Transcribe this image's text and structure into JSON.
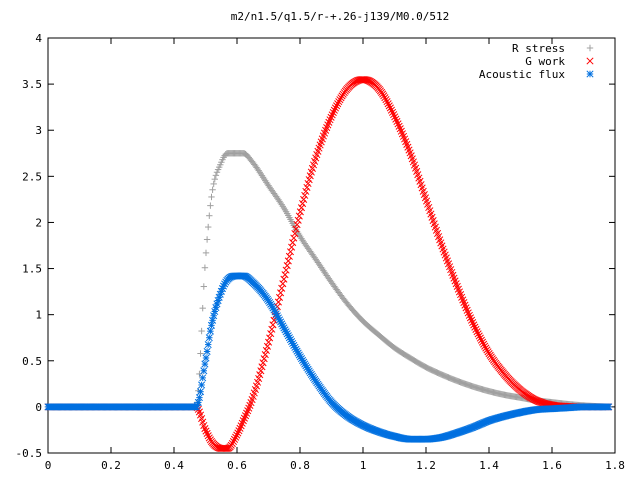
{
  "chart_data": {
    "type": "scatter",
    "title": "m2/n1.5/q1.5/r-+.26-j139/M0.0/512",
    "xlabel": "",
    "ylabel": "",
    "xlim": [
      0,
      1.8
    ],
    "ylim": [
      -0.5,
      4
    ],
    "x_ticks": [
      "0",
      "0.2",
      "0.4",
      "0.6",
      "0.8",
      "1",
      "1.2",
      "1.4",
      "1.6",
      "1.8"
    ],
    "y_ticks": [
      "-0.5",
      "0",
      "0.5",
      "1",
      "1.5",
      "2",
      "2.5",
      "3",
      "3.5",
      "4"
    ],
    "grid": false,
    "legend_position": "top-right",
    "x": [
      0,
      0.05,
      0.1,
      0.15,
      0.2,
      0.25,
      0.3,
      0.35,
      0.4,
      0.45,
      0.47,
      0.5,
      0.52,
      0.55,
      0.57,
      0.6,
      0.62,
      0.65,
      0.7,
      0.75,
      0.8,
      0.85,
      0.9,
      0.95,
      1.0,
      1.05,
      1.1,
      1.15,
      1.2,
      1.25,
      1.3,
      1.35,
      1.4,
      1.45,
      1.5,
      1.55,
      1.6,
      1.65,
      1.7,
      1.75,
      1.78
    ],
    "series": [
      {
        "name": "R stress",
        "marker": "plus",
        "color": "#a0a0a0",
        "values": [
          0,
          0,
          0,
          0,
          0,
          0,
          0,
          0,
          0,
          0,
          0,
          1.6,
          2.3,
          2.65,
          2.75,
          2.75,
          2.75,
          2.65,
          2.4,
          2.15,
          1.85,
          1.6,
          1.35,
          1.12,
          0.93,
          0.78,
          0.64,
          0.53,
          0.43,
          0.35,
          0.28,
          0.22,
          0.17,
          0.13,
          0.1,
          0.07,
          0.05,
          0.03,
          0.015,
          0.005,
          0
        ]
      },
      {
        "name": "G work",
        "marker": "cross",
        "color": "#ff0000",
        "values": [
          0,
          0,
          0,
          0,
          0,
          0,
          0,
          0,
          0,
          0,
          0,
          -0.25,
          -0.38,
          -0.45,
          -0.45,
          -0.3,
          -0.15,
          0.1,
          0.7,
          1.4,
          2.1,
          2.7,
          3.15,
          3.45,
          3.55,
          3.45,
          3.15,
          2.75,
          2.25,
          1.75,
          1.3,
          0.9,
          0.58,
          0.35,
          0.18,
          0.07,
          0.02,
          0.005,
          0,
          0,
          0
        ]
      },
      {
        "name": "Acoustic flux",
        "marker": "star",
        "color": "#0070e0",
        "values": [
          0,
          0,
          0,
          0,
          0,
          0,
          0,
          0,
          0,
          0,
          0,
          0.5,
          0.9,
          1.25,
          1.38,
          1.42,
          1.42,
          1.35,
          1.15,
          0.85,
          0.55,
          0.28,
          0.05,
          -0.1,
          -0.2,
          -0.27,
          -0.32,
          -0.35,
          -0.35,
          -0.33,
          -0.28,
          -0.22,
          -0.15,
          -0.1,
          -0.06,
          -0.03,
          -0.02,
          -0.01,
          0,
          0,
          0
        ]
      }
    ]
  }
}
